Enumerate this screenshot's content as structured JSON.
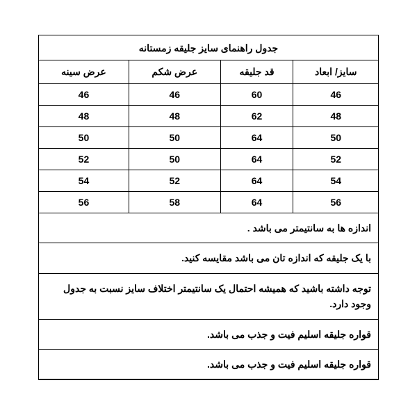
{
  "table": {
    "title": "جدول راهنمای سایز  جلیقه زمستانه",
    "columns": [
      "سایز/ ابعاد",
      "قد جلیقه",
      "عرض شکم",
      "عرض سینه"
    ],
    "rows": [
      [
        "46",
        "60",
        "46",
        "46"
      ],
      [
        "48",
        "62",
        "48",
        "48"
      ],
      [
        "50",
        "64",
        "50",
        "50"
      ],
      [
        "52",
        "64",
        "50",
        "52"
      ],
      [
        "54",
        "64",
        "52",
        "54"
      ],
      [
        "56",
        "64",
        "58",
        "56"
      ]
    ],
    "notes": [
      "اندازه ها به سانتیمتر می باشد .",
      "با یک جلیقه که اندازه تان می باشد مقایسه کنید.",
      "توجه داشته باشید که همیشه احتمال یک سانتیمتر اختلاف سایز نسبت به جدول وجود دارد.",
      "قواره جلیقه اسلیم فیت و جذب می باشد.",
      "قواره جلیقه اسلیم فیت و جذب می باشد."
    ],
    "styling": {
      "border_color": "#000000",
      "background_color": "#ffffff",
      "text_color": "#000000",
      "font_weight": "bold",
      "font_size": 14,
      "title_font_size": 14,
      "direction": "rtl",
      "col_count": 4
    }
  }
}
